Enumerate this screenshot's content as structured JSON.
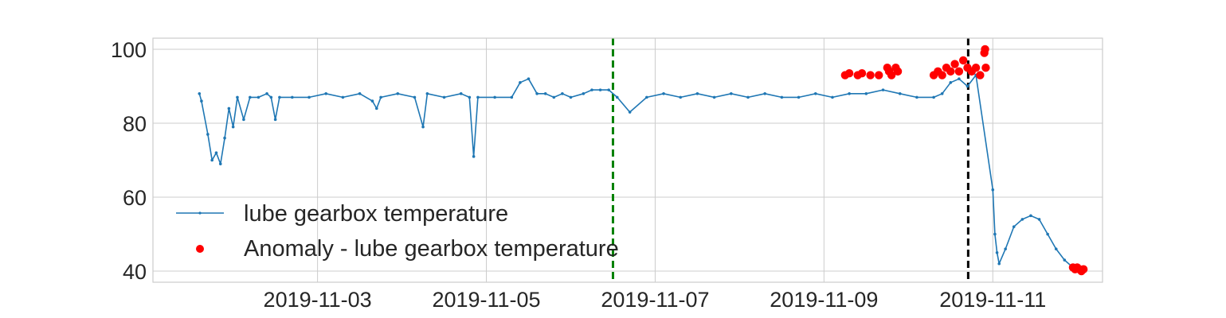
{
  "chart_data": {
    "type": "line",
    "title": "",
    "xlabel": "",
    "ylabel": "",
    "x_tick_labels": [
      "2019-11-03",
      "2019-11-05",
      "2019-11-07",
      "2019-11-09",
      "2019-11-11"
    ],
    "y_tick_labels": [
      "40",
      "60",
      "80",
      "100"
    ],
    "xlim": [
      "2019-11-01 01:12",
      "2019-11-12 07:12"
    ],
    "ylim": [
      37,
      103
    ],
    "grid": true,
    "legend_position": "lower-left",
    "colors": {
      "series": "#1f77b4",
      "anomaly": "#ff0000",
      "vline_green": "#008000",
      "vline_black": "#000000",
      "grid": "#cccccc"
    },
    "vertical_lines": [
      {
        "x": "2019-11-06 12:00",
        "color": "green",
        "style": "dashed"
      },
      {
        "x": "2019-11-10 17:00",
        "color": "black",
        "style": "dashed"
      }
    ],
    "series": [
      {
        "name": "lube gearbox temperature",
        "kind": "line-with-markers",
        "points": [
          [
            "2019-11-01 14:24",
            88
          ],
          [
            "2019-11-01 15:00",
            86
          ],
          [
            "2019-11-01 16:48",
            77
          ],
          [
            "2019-11-01 18:00",
            70
          ],
          [
            "2019-11-01 19:12",
            72
          ],
          [
            "2019-11-01 20:24",
            69
          ],
          [
            "2019-11-01 21:36",
            76
          ],
          [
            "2019-11-01 22:48",
            84
          ],
          [
            "2019-11-02 00:00",
            79
          ],
          [
            "2019-11-02 01:12",
            87
          ],
          [
            "2019-11-02 03:00",
            81
          ],
          [
            "2019-11-02 04:48",
            87
          ],
          [
            "2019-11-02 07:12",
            87
          ],
          [
            "2019-11-02 09:36",
            88
          ],
          [
            "2019-11-02 10:48",
            87
          ],
          [
            "2019-11-02 12:00",
            81
          ],
          [
            "2019-11-02 13:12",
            87
          ],
          [
            "2019-11-02 16:48",
            87
          ],
          [
            "2019-11-02 21:36",
            87
          ],
          [
            "2019-11-03 02:24",
            88
          ],
          [
            "2019-11-03 07:12",
            87
          ],
          [
            "2019-11-03 12:00",
            88
          ],
          [
            "2019-11-03 15:36",
            86
          ],
          [
            "2019-11-03 16:48",
            84
          ],
          [
            "2019-11-03 18:00",
            87
          ],
          [
            "2019-11-03 22:48",
            88
          ],
          [
            "2019-11-04 03:36",
            87
          ],
          [
            "2019-11-04 06:00",
            79
          ],
          [
            "2019-11-04 07:12",
            88
          ],
          [
            "2019-11-04 12:00",
            87
          ],
          [
            "2019-11-04 16:48",
            88
          ],
          [
            "2019-11-04 19:12",
            87
          ],
          [
            "2019-11-04 20:24",
            71
          ],
          [
            "2019-11-04 21:36",
            87
          ],
          [
            "2019-11-05 02:24",
            87
          ],
          [
            "2019-11-05 07:12",
            87
          ],
          [
            "2019-11-05 09:36",
            91
          ],
          [
            "2019-11-05 12:00",
            92
          ],
          [
            "2019-11-05 14:24",
            88
          ],
          [
            "2019-11-05 16:48",
            88
          ],
          [
            "2019-11-05 19:12",
            87
          ],
          [
            "2019-11-05 21:36",
            88
          ],
          [
            "2019-11-06 00:00",
            87
          ],
          [
            "2019-11-06 03:36",
            88
          ],
          [
            "2019-11-06 06:00",
            89
          ],
          [
            "2019-11-06 08:24",
            89
          ],
          [
            "2019-11-06 10:48",
            89
          ],
          [
            "2019-11-06 13:12",
            87
          ],
          [
            "2019-11-06 16:48",
            83
          ],
          [
            "2019-11-06 21:36",
            87
          ],
          [
            "2019-11-07 02:24",
            88
          ],
          [
            "2019-11-07 07:12",
            87
          ],
          [
            "2019-11-07 12:00",
            88
          ],
          [
            "2019-11-07 16:48",
            87
          ],
          [
            "2019-11-07 21:36",
            88
          ],
          [
            "2019-11-08 02:24",
            87
          ],
          [
            "2019-11-08 07:12",
            88
          ],
          [
            "2019-11-08 12:00",
            87
          ],
          [
            "2019-11-08 16:48",
            87
          ],
          [
            "2019-11-08 21:36",
            88
          ],
          [
            "2019-11-09 02:24",
            87
          ],
          [
            "2019-11-09 07:12",
            88
          ],
          [
            "2019-11-09 12:00",
            88
          ],
          [
            "2019-11-09 16:48",
            89
          ],
          [
            "2019-11-09 21:36",
            88
          ],
          [
            "2019-11-10 02:24",
            87
          ],
          [
            "2019-11-10 07:12",
            87
          ],
          [
            "2019-11-10 09:36",
            88
          ],
          [
            "2019-11-10 12:00",
            91
          ],
          [
            "2019-11-10 14:24",
            92
          ],
          [
            "2019-11-10 16:48",
            90
          ],
          [
            "2019-11-10 19:12",
            93
          ],
          [
            "2019-11-11 00:00",
            62
          ],
          [
            "2019-11-11 00:36",
            50
          ],
          [
            "2019-11-11 01:12",
            45
          ],
          [
            "2019-11-11 01:48",
            42
          ],
          [
            "2019-11-11 03:36",
            46
          ],
          [
            "2019-11-11 06:00",
            52
          ],
          [
            "2019-11-11 08:24",
            54
          ],
          [
            "2019-11-11 10:48",
            55
          ],
          [
            "2019-11-11 13:12",
            54
          ],
          [
            "2019-11-11 15:36",
            50
          ],
          [
            "2019-11-11 18:00",
            46
          ],
          [
            "2019-11-11 20:24",
            43
          ],
          [
            "2019-11-11 22:48",
            41
          ],
          [
            "2019-11-12 01:12",
            40
          ]
        ]
      },
      {
        "name": "Anomaly - lube gearbox temperature",
        "kind": "scatter",
        "points": [
          [
            "2019-11-09 06:00",
            93
          ],
          [
            "2019-11-09 07:12",
            93.5
          ],
          [
            "2019-11-09 09:36",
            93
          ],
          [
            "2019-11-09 10:48",
            93.5
          ],
          [
            "2019-11-09 13:12",
            93
          ],
          [
            "2019-11-09 15:36",
            93
          ],
          [
            "2019-11-09 18:00",
            95
          ],
          [
            "2019-11-09 18:30",
            94
          ],
          [
            "2019-11-09 19:12",
            93
          ],
          [
            "2019-11-09 20:24",
            95
          ],
          [
            "2019-11-09 21:00",
            94
          ],
          [
            "2019-11-10 07:12",
            93
          ],
          [
            "2019-11-10 08:24",
            94
          ],
          [
            "2019-11-10 09:36",
            93
          ],
          [
            "2019-11-10 10:48",
            95
          ],
          [
            "2019-11-10 12:00",
            94
          ],
          [
            "2019-11-10 13:12",
            96
          ],
          [
            "2019-11-10 14:24",
            94
          ],
          [
            "2019-11-10 15:36",
            97
          ],
          [
            "2019-11-10 16:48",
            95
          ],
          [
            "2019-11-10 18:00",
            94
          ],
          [
            "2019-11-10 19:12",
            95
          ],
          [
            "2019-11-10 20:24",
            93
          ],
          [
            "2019-11-10 21:36",
            99
          ],
          [
            "2019-11-10 21:48",
            100
          ],
          [
            "2019-11-10 22:00",
            95
          ],
          [
            "2019-11-11 22:48",
            41
          ],
          [
            "2019-11-11 23:24",
            40.5
          ],
          [
            "2019-11-12 00:00",
            41
          ],
          [
            "2019-11-12 00:36",
            40.5
          ],
          [
            "2019-11-12 01:12",
            40
          ],
          [
            "2019-11-12 01:48",
            40.5
          ]
        ]
      }
    ]
  },
  "legend": {
    "line_label": "lube gearbox temperature",
    "anomaly_label": "Anomaly - lube gearbox temperature"
  }
}
